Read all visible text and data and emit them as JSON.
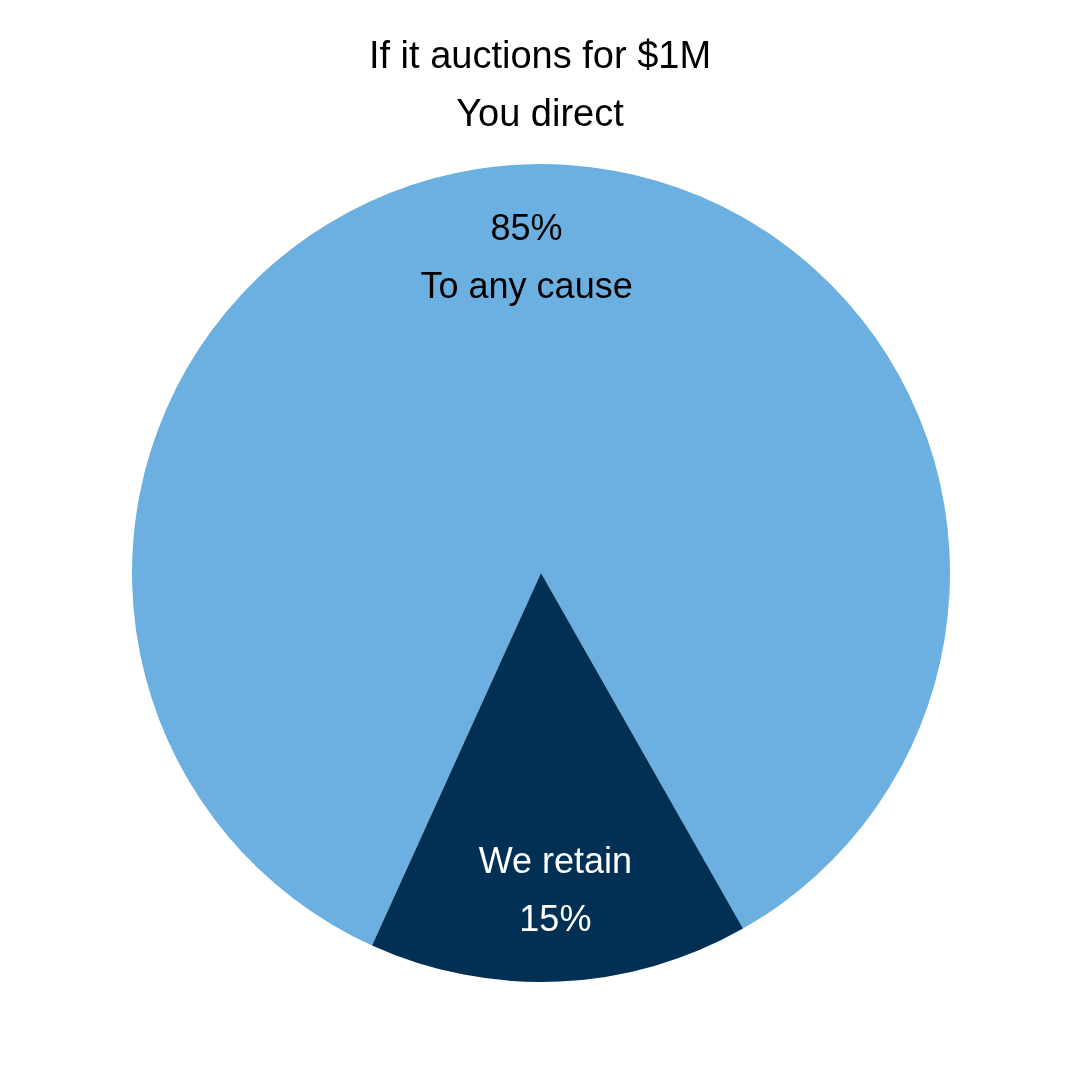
{
  "chart_data": {
    "type": "pie",
    "title": "If it auctions for $1M",
    "subtitle": "You direct",
    "categories": [
      "To any cause",
      "We retain"
    ],
    "values": [
      85,
      15
    ],
    "colors": [
      "#6cb0e1",
      "#023054"
    ],
    "value_labels": [
      "85%",
      "15%"
    ]
  }
}
